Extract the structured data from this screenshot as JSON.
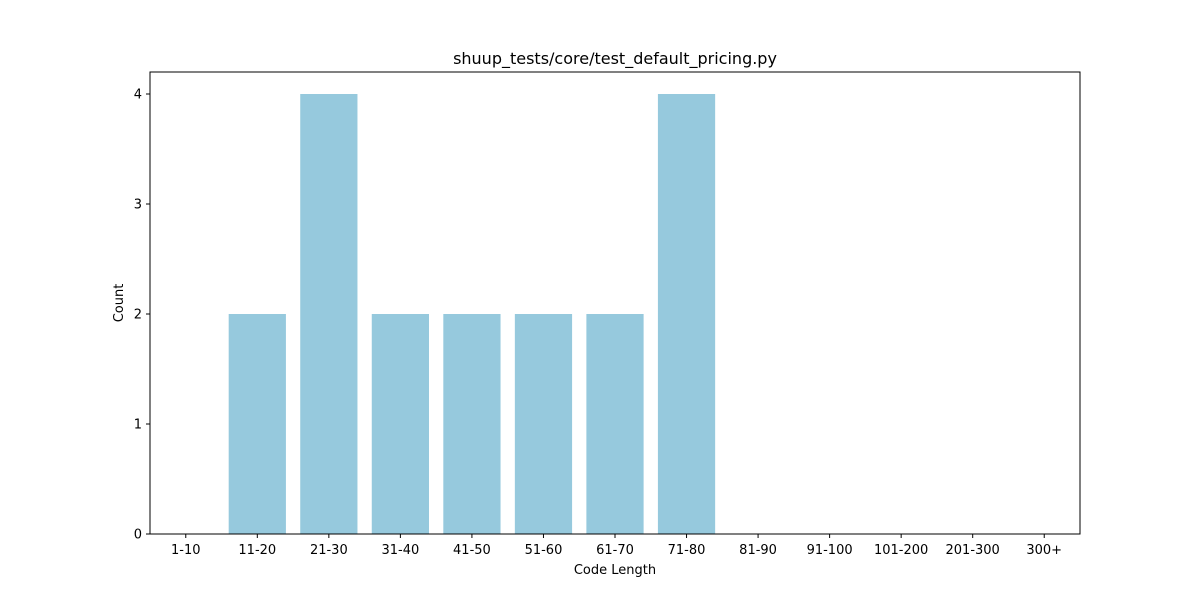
{
  "chart_data": {
    "type": "bar",
    "title": "shuup_tests/core/test_default_pricing.py",
    "xlabel": "Code Length",
    "ylabel": "Count",
    "categories": [
      "1-10",
      "11-20",
      "21-30",
      "31-40",
      "41-50",
      "51-60",
      "61-70",
      "71-80",
      "81-90",
      "91-100",
      "101-200",
      "201-300",
      "300+"
    ],
    "values": [
      0,
      2,
      4,
      2,
      2,
      2,
      2,
      4,
      0,
      0,
      0,
      0,
      0
    ],
    "ylim": [
      0,
      4.2
    ],
    "yticks": [
      0,
      1,
      2,
      3,
      4
    ],
    "bar_color": "#96c9dd",
    "grid": false,
    "legend": "none"
  }
}
